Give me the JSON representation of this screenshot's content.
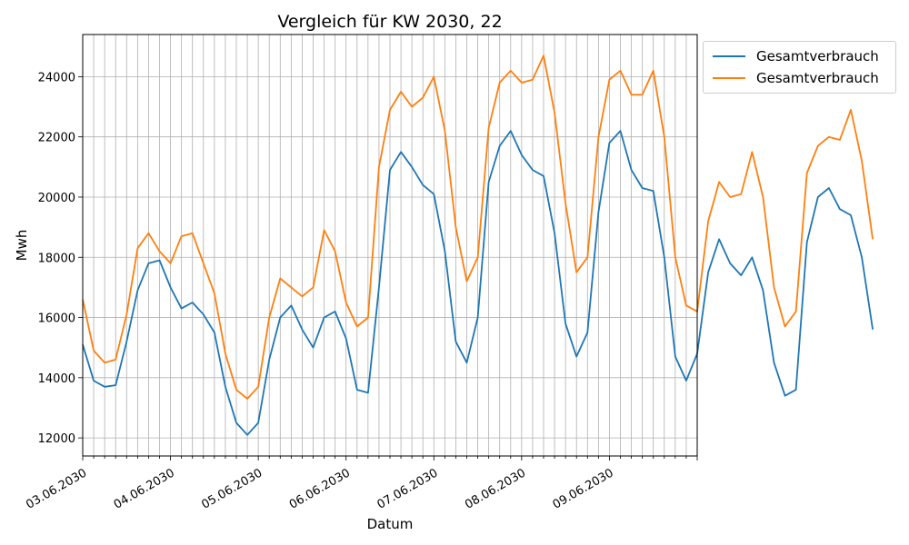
{
  "chart_data": {
    "type": "line",
    "title": "Vergleich für KW 2030, 22",
    "xlabel": "Datum",
    "ylabel": "Mwh",
    "ylim": [
      11400,
      25400
    ],
    "yticks": [
      12000,
      14000,
      16000,
      18000,
      20000,
      22000,
      24000
    ],
    "xlim_days": [
      0,
      7
    ],
    "xtick_labels": [
      "03.06.2030",
      "04.06.2030",
      "05.06.2030",
      "06.06.2030",
      "07.06.2030",
      "08.06.2030",
      "09.06.2030"
    ],
    "grid": true,
    "legend_position": "outside-top-right",
    "series": [
      {
        "name": "Gesamtverbrauch",
        "color": "#1f77b4",
        "points": [
          [
            "03.06.2030 00:00",
            15100
          ],
          [
            "03.06.2030 03:00",
            13900
          ],
          [
            "03.06.2030 06:00",
            13700
          ],
          [
            "03.06.2030 09:00",
            13750
          ],
          [
            "03.06.2030 12:00",
            15200
          ],
          [
            "03.06.2030 15:00",
            16900
          ],
          [
            "03.06.2030 18:00",
            17800
          ],
          [
            "03.06.2030 21:00",
            17900
          ],
          [
            "04.06.2030 00:00",
            17000
          ],
          [
            "04.06.2030 03:00",
            16300
          ],
          [
            "04.06.2030 06:00",
            16500
          ],
          [
            "04.06.2030 09:00",
            16100
          ],
          [
            "04.06.2030 12:00",
            15500
          ],
          [
            "04.06.2030 15:00",
            13700
          ],
          [
            "04.06.2030 18:00",
            12500
          ],
          [
            "04.06.2030 21:00",
            12100
          ],
          [
            "05.06.2030 00:00",
            12500
          ],
          [
            "05.06.2030 03:00",
            14600
          ],
          [
            "05.06.2030 06:00",
            16000
          ],
          [
            "05.06.2030 09:00",
            16400
          ],
          [
            "05.06.2030 12:00",
            15600
          ],
          [
            "05.06.2030 15:00",
            15000
          ],
          [
            "05.06.2030 18:00",
            16000
          ],
          [
            "05.06.2030 21:00",
            16200
          ],
          [
            "06.06.2030 00:00",
            15300
          ],
          [
            "06.06.2030 03:00",
            13600
          ],
          [
            "06.06.2030 06:00",
            13500
          ],
          [
            "06.06.2030 09:00",
            17000
          ],
          [
            "06.06.2030 12:00",
            20900
          ],
          [
            "06.06.2030 15:00",
            21500
          ],
          [
            "06.06.2030 18:00",
            21000
          ],
          [
            "06.06.2030 21:00",
            20400
          ],
          [
            "07.06.2030 00:00",
            20100
          ],
          [
            "07.06.2030 03:00",
            18200
          ],
          [
            "07.06.2030 06:00",
            15200
          ],
          [
            "07.06.2030 09:00",
            14500
          ],
          [
            "07.06.2030 12:00",
            16000
          ],
          [
            "07.06.2030 15:00",
            20500
          ],
          [
            "07.06.2030 18:00",
            21700
          ],
          [
            "07.06.2030 21:00",
            22200
          ],
          [
            "08.06.2030 00:00",
            21400
          ],
          [
            "08.06.2030 03:00",
            20900
          ],
          [
            "08.06.2030 06:00",
            20700
          ],
          [
            "08.06.2030 09:00",
            18800
          ],
          [
            "08.06.2030 12:00",
            15800
          ],
          [
            "08.06.2030 15:00",
            14700
          ],
          [
            "08.06.2030 18:00",
            15500
          ],
          [
            "08.06.2030 21:00",
            19500
          ],
          [
            "09.06.2030 00:00",
            21800
          ],
          [
            "09.06.2030 03:00",
            22200
          ],
          [
            "09.06.2030 06:00",
            20900
          ],
          [
            "09.06.2030 09:00",
            20300
          ],
          [
            "09.06.2030 12:00",
            20200
          ],
          [
            "09.06.2030 15:00",
            18000
          ],
          [
            "09.06.2030 18:00",
            14700
          ],
          [
            "09.06.2030 21:00",
            13900
          ],
          [
            "10.06.2030 00:00",
            14800
          ],
          [
            "10.06.2030 03:00",
            17500
          ],
          [
            "10.06.2030 06:00",
            18600
          ],
          [
            "10.06.2030 09:00",
            17800
          ],
          [
            "10.06.2030 12:00",
            17400
          ],
          [
            "10.06.2030 15:00",
            18000
          ],
          [
            "10.06.2030 18:00",
            16900
          ],
          [
            "10.06.2030 21:00",
            14500
          ],
          [
            "11.06.2030 00:00",
            13400
          ],
          [
            "11.06.2030 03:00",
            13600
          ],
          [
            "11.06.2030 06:00",
            18500
          ],
          [
            "11.06.2030 09:00",
            20000
          ],
          [
            "11.06.2030 12:00",
            20300
          ],
          [
            "11.06.2030 15:00",
            19600
          ],
          [
            "11.06.2030 18:00",
            19400
          ],
          [
            "11.06.2030 21:00",
            18000
          ],
          [
            "12.06.2030 00:00",
            15600
          ]
        ]
      },
      {
        "name": "Gesamtverbrauch",
        "color": "#ff7f0e",
        "points": [
          [
            "03.06.2030 00:00",
            16600
          ],
          [
            "03.06.2030 03:00",
            14900
          ],
          [
            "03.06.2030 06:00",
            14500
          ],
          [
            "03.06.2030 09:00",
            14600
          ],
          [
            "03.06.2030 12:00",
            16100
          ],
          [
            "03.06.2030 15:00",
            18300
          ],
          [
            "03.06.2030 18:00",
            18800
          ],
          [
            "03.06.2030 21:00",
            18200
          ],
          [
            "04.06.2030 00:00",
            17800
          ],
          [
            "04.06.2030 03:00",
            18700
          ],
          [
            "04.06.2030 06:00",
            18800
          ],
          [
            "04.06.2030 09:00",
            17800
          ],
          [
            "04.06.2030 12:00",
            16800
          ],
          [
            "04.06.2030 15:00",
            14800
          ],
          [
            "04.06.2030 18:00",
            13600
          ],
          [
            "04.06.2030 21:00",
            13300
          ],
          [
            "05.06.2030 00:00",
            13700
          ],
          [
            "05.06.2030 03:00",
            16000
          ],
          [
            "05.06.2030 06:00",
            17300
          ],
          [
            "05.06.2030 09:00",
            17000
          ],
          [
            "05.06.2030 12:00",
            16700
          ],
          [
            "05.06.2030 15:00",
            17000
          ],
          [
            "05.06.2030 18:00",
            18900
          ],
          [
            "05.06.2030 21:00",
            18200
          ],
          [
            "06.06.2030 00:00",
            16500
          ],
          [
            "06.06.2030 03:00",
            15700
          ],
          [
            "06.06.2030 06:00",
            16000
          ],
          [
            "06.06.2030 09:00",
            21000
          ],
          [
            "06.06.2030 12:00",
            22900
          ],
          [
            "06.06.2030 15:00",
            23500
          ],
          [
            "06.06.2030 18:00",
            23000
          ],
          [
            "06.06.2030 21:00",
            23300
          ],
          [
            "07.06.2030 00:00",
            24000
          ],
          [
            "07.06.2030 03:00",
            22200
          ],
          [
            "07.06.2030 06:00",
            19000
          ],
          [
            "07.06.2030 09:00",
            17200
          ],
          [
            "07.06.2030 12:00",
            18000
          ],
          [
            "07.06.2030 15:00",
            22300
          ],
          [
            "07.06.2030 18:00",
            23800
          ],
          [
            "07.06.2030 21:00",
            24200
          ],
          [
            "08.06.2030 00:00",
            23800
          ],
          [
            "08.06.2030 03:00",
            23900
          ],
          [
            "08.06.2030 06:00",
            24700
          ],
          [
            "08.06.2030 09:00",
            22800
          ],
          [
            "08.06.2030 12:00",
            19800
          ],
          [
            "08.06.2030 15:00",
            17500
          ],
          [
            "08.06.2030 18:00",
            18000
          ],
          [
            "08.06.2030 21:00",
            22000
          ],
          [
            "09.06.2030 00:00",
            23900
          ],
          [
            "09.06.2030 03:00",
            24200
          ],
          [
            "09.06.2030 06:00",
            23400
          ],
          [
            "09.06.2030 09:00",
            23400
          ],
          [
            "09.06.2030 12:00",
            24200
          ],
          [
            "09.06.2030 15:00",
            22000
          ],
          [
            "09.06.2030 18:00",
            18000
          ],
          [
            "09.06.2030 21:00",
            16400
          ],
          [
            "10.06.2030 00:00",
            16200
          ],
          [
            "10.06.2030 03:00",
            19200
          ],
          [
            "10.06.2030 06:00",
            20500
          ],
          [
            "10.06.2030 09:00",
            20000
          ],
          [
            "10.06.2030 12:00",
            20100
          ],
          [
            "10.06.2030 15:00",
            21500
          ],
          [
            "10.06.2030 18:00",
            20000
          ],
          [
            "10.06.2030 21:00",
            17000
          ],
          [
            "11.06.2030 00:00",
            15700
          ],
          [
            "11.06.2030 03:00",
            16200
          ],
          [
            "11.06.2030 06:00",
            20800
          ],
          [
            "11.06.2030 09:00",
            21700
          ],
          [
            "11.06.2030 12:00",
            22000
          ],
          [
            "11.06.2030 15:00",
            21900
          ],
          [
            "11.06.2030 18:00",
            22900
          ],
          [
            "11.06.2030 21:00",
            21200
          ],
          [
            "12.06.2030 00:00",
            18600
          ]
        ]
      }
    ]
  }
}
